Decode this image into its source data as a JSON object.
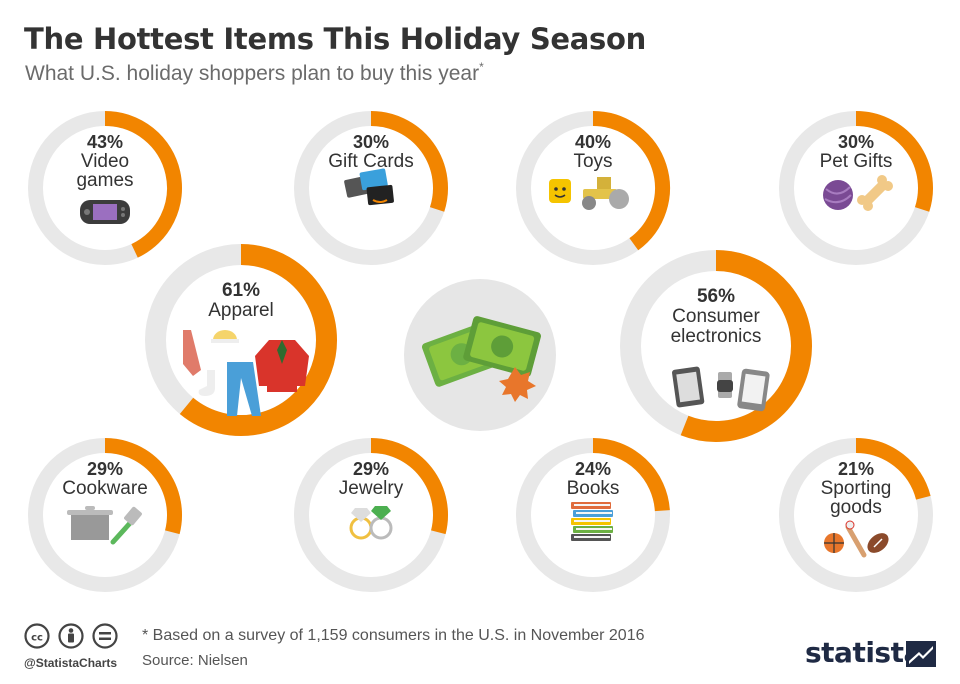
{
  "header": {
    "title": "The Hottest Items This Holiday Season",
    "subtitle": "What U.S. holiday shoppers plan to buy this year",
    "subtitle_mark": "*"
  },
  "chart_data": {
    "type": "pie",
    "title": "The Hottest Items This Holiday Season",
    "subtitle": "What U.S. holiday shoppers plan to buy this year*",
    "unit": "%",
    "categories": [
      "Video games",
      "Gift Cards",
      "Toys",
      "Pet Gifts",
      "Apparel",
      "Consumer electronics",
      "Cookware",
      "Jewelry",
      "Books",
      "Sporting goods"
    ],
    "values": [
      43,
      30,
      40,
      30,
      61,
      56,
      29,
      29,
      24,
      21
    ],
    "items": [
      {
        "label_lines": [
          "Video",
          "games"
        ],
        "value": 43,
        "value_label": "43%",
        "icon": "handheld-console-icon"
      },
      {
        "label_lines": [
          "Gift Cards"
        ],
        "value": 30,
        "value_label": "30%",
        "icon": "gift-cards-icon"
      },
      {
        "label_lines": [
          "Toys"
        ],
        "value": 40,
        "value_label": "40%",
        "icon": "toys-icon"
      },
      {
        "label_lines": [
          "Pet Gifts"
        ],
        "value": 30,
        "value_label": "30%",
        "icon": "pet-gifts-icon"
      },
      {
        "label_lines": [
          "Apparel"
        ],
        "value": 61,
        "value_label": "61%",
        "icon": "apparel-icon"
      },
      {
        "label_lines": [
          "Consumer",
          "electronics"
        ],
        "value": 56,
        "value_label": "56%",
        "icon": "electronics-icon"
      },
      {
        "label_lines": [
          "Cookware"
        ],
        "value": 29,
        "value_label": "29%",
        "icon": "cookware-icon"
      },
      {
        "label_lines": [
          "Jewelry"
        ],
        "value": 29,
        "value_label": "29%",
        "icon": "jewelry-icon"
      },
      {
        "label_lines": [
          "Books"
        ],
        "value": 24,
        "value_label": "24%",
        "icon": "books-icon"
      },
      {
        "label_lines": [
          "Sporting",
          "goods"
        ],
        "value": 21,
        "value_label": "21%",
        "icon": "sporting-goods-icon"
      }
    ],
    "colors": {
      "ring_value": "#f28500",
      "ring_track": "#e8e8e8",
      "center_disc": "#e6e6e6"
    }
  },
  "footer": {
    "footnote": "* Based on a survey of 1,159 consumers in the U.S. in November 2016",
    "source": "Source: Nielsen",
    "handle": "@StatistaCharts",
    "brand": "statista"
  }
}
